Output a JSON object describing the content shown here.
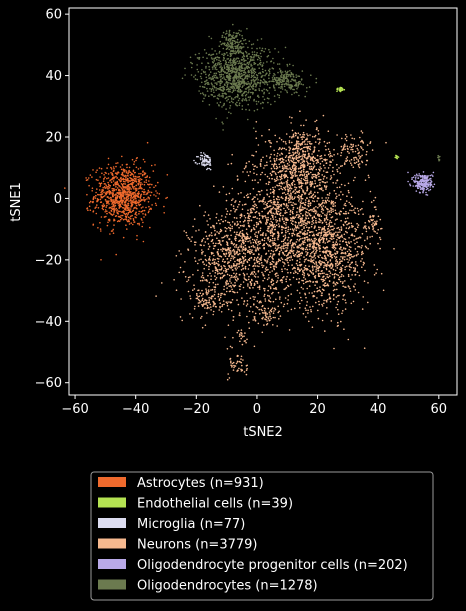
{
  "chart_data": {
    "type": "scatter",
    "title": "",
    "xlabel": "tSNE2",
    "ylabel": "tSNE1",
    "xlim": [
      -62,
      66
    ],
    "ylim": [
      -64,
      62
    ],
    "xticks": [
      -60,
      -40,
      -20,
      0,
      20,
      40,
      60
    ],
    "yticks": [
      -60,
      -40,
      -20,
      0,
      20,
      40,
      60
    ],
    "xtick_labels": [
      "−60",
      "−40",
      "−20",
      "0",
      "20",
      "40",
      "60"
    ],
    "ytick_labels": [
      "−60",
      "−40",
      "−20",
      "0",
      "20",
      "40",
      "60"
    ],
    "grid": false,
    "legend_position": "below",
    "series": [
      {
        "name": "Astrocytes (n=931)",
        "color": "#f06a2d",
        "count": 931,
        "clusters": [
          {
            "cx": -44,
            "cy": 1,
            "sx": 4.8,
            "sy": 5.0
          }
        ]
      },
      {
        "name": "Endothelial cells (n=39)",
        "color": "#b5e352",
        "count": 39,
        "clusters": [
          {
            "cx": 27.5,
            "cy": 35.5,
            "sx": 0.6,
            "sy": 0.4
          },
          {
            "cx": 46,
            "cy": 13.5,
            "sx": 0.3,
            "sy": 0.3
          }
        ]
      },
      {
        "name": "Microglia (n=77)",
        "color": "#dcdcf0",
        "count": 77,
        "clusters": [
          {
            "cx": -17,
            "cy": 12,
            "sx": 1.2,
            "sy": 1.4
          }
        ]
      },
      {
        "name": "Neurons (n=3779)",
        "color": "#f7b98f",
        "count": 3779,
        "clusters": [
          {
            "cx": 10,
            "cy": -8,
            "sx": 9,
            "sy": 12
          },
          {
            "cx": 24,
            "cy": -18,
            "sx": 7,
            "sy": 9
          },
          {
            "cx": -8,
            "cy": -20,
            "sx": 7,
            "sy": 8
          },
          {
            "cx": 15,
            "cy": 10,
            "sx": 6,
            "sy": 6
          },
          {
            "cx": 14,
            "cy": 16,
            "sx": 2.5,
            "sy": 3
          },
          {
            "cx": 32,
            "cy": 15,
            "sx": 2.5,
            "sy": 3
          },
          {
            "cx": 38,
            "cy": -8,
            "sx": 1.5,
            "sy": 2.5
          },
          {
            "cx": -16,
            "cy": -33,
            "sx": 3,
            "sy": 2.5
          },
          {
            "cx": 2,
            "cy": -38,
            "sx": 2.5,
            "sy": 2
          },
          {
            "cx": -5,
            "cy": -45,
            "sx": 1,
            "sy": 1.5
          },
          {
            "cx": -6,
            "cy": -54,
            "sx": 1.5,
            "sy": 2.5
          }
        ]
      },
      {
        "name": "Oligodendrocyte progenitor cells (n=202)",
        "color": "#b9a9e8",
        "count": 202,
        "clusters": [
          {
            "cx": 55,
            "cy": 5,
            "sx": 1.6,
            "sy": 1.6
          }
        ]
      },
      {
        "name": "Oligodendrocytes (n=1278)",
        "color": "#6b7a4f",
        "count": 1278,
        "clusters": [
          {
            "cx": -7,
            "cy": 40,
            "sx": 6,
            "sy": 5
          },
          {
            "cx": -8,
            "cy": 51,
            "sx": 2,
            "sy": 2
          },
          {
            "cx": 10,
            "cy": 38,
            "sx": 3,
            "sy": 2
          },
          {
            "cx": 60,
            "cy": 13,
            "sx": 0.3,
            "sy": 0.8
          }
        ]
      }
    ]
  }
}
